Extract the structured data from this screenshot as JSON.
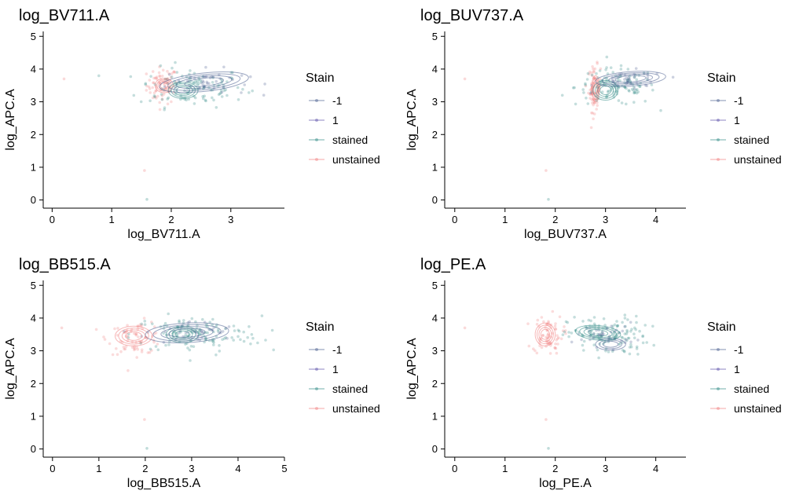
{
  "colors": {
    "neg1": "#4a5f8f",
    "pos1": "#5a4fa8",
    "stained": "#2f8a85",
    "unstained": "#f08080",
    "axis": "#000000"
  },
  "legend": {
    "title": "Stain",
    "entries": [
      "-1",
      "1",
      "stained",
      "unstained"
    ]
  },
  "chart_data": [
    {
      "type": "scatter",
      "title": "log_BV711.A",
      "xlabel": "log_BV711.A",
      "ylabel": "log_APC.A",
      "xlim": [
        -0.15,
        3.9
      ],
      "ylim": [
        -0.25,
        5.15
      ],
      "xticks": [
        "0",
        "1",
        "2",
        "3"
      ],
      "yticks": [
        "0",
        "1",
        "2",
        "3",
        "4",
        "5"
      ],
      "clusters": [
        {
          "series": "unstained",
          "cx": 1.85,
          "cy": 3.5,
          "sx": 0.13,
          "sy": 0.28,
          "n": 70
        },
        {
          "series": "stained",
          "cx": 2.35,
          "cy": 3.45,
          "sx": 0.45,
          "sy": 0.3,
          "n": 120
        },
        {
          "series": "-1",
          "cx": 2.6,
          "cy": 3.6,
          "sx": 0.35,
          "sy": 0.2,
          "n": 40
        }
      ],
      "contours": [
        {
          "series": "unstained",
          "cx": 1.88,
          "cy": 3.5,
          "rx": 0.15,
          "ry": 0.22,
          "rot": 0,
          "levels": 4
        },
        {
          "series": "stained",
          "cx": 2.2,
          "cy": 3.35,
          "rx": 0.25,
          "ry": 0.25,
          "rot": 0,
          "levels": 4
        },
        {
          "series": "-1",
          "cx": 2.55,
          "cy": 3.6,
          "rx": 0.75,
          "ry": 0.28,
          "rot": -6,
          "levels": 4
        }
      ]
    },
    {
      "type": "scatter",
      "title": "log_BUV737.A",
      "xlabel": "log_BUV737.A",
      "ylabel": "log_APC.A",
      "xlim": [
        -0.2,
        4.6
      ],
      "ylim": [
        -0.25,
        5.15
      ],
      "xticks": [
        "0",
        "1",
        "2",
        "3",
        "4"
      ],
      "yticks": [
        "0",
        "1",
        "2",
        "3",
        "4",
        "5"
      ],
      "clusters": [
        {
          "series": "unstained",
          "cx": 2.78,
          "cy": 3.4,
          "sx": 0.06,
          "sy": 0.35,
          "n": 70
        },
        {
          "series": "stained",
          "cx": 3.2,
          "cy": 3.45,
          "sx": 0.4,
          "sy": 0.28,
          "n": 120
        },
        {
          "series": "-1",
          "cx": 3.5,
          "cy": 3.65,
          "sx": 0.35,
          "sy": 0.15,
          "n": 40
        }
      ],
      "contours": [
        {
          "series": "unstained",
          "cx": 2.8,
          "cy": 3.4,
          "rx": 0.08,
          "ry": 0.4,
          "rot": 0,
          "levels": 4
        },
        {
          "series": "stained",
          "cx": 3.0,
          "cy": 3.35,
          "rx": 0.25,
          "ry": 0.3,
          "rot": 0,
          "levels": 4
        },
        {
          "series": "-1",
          "cx": 3.5,
          "cy": 3.7,
          "rx": 0.7,
          "ry": 0.22,
          "rot": -4,
          "levels": 4
        }
      ]
    },
    {
      "type": "scatter",
      "title": "log_BB515.A",
      "xlabel": "log_BB515.A",
      "ylabel": "log_APC.A",
      "xlim": [
        -0.2,
        5.0
      ],
      "ylim": [
        -0.25,
        5.15
      ],
      "xticks": [
        "0",
        "1",
        "2",
        "3",
        "4",
        "5"
      ],
      "yticks": [
        "0",
        "1",
        "2",
        "3",
        "4",
        "5"
      ],
      "clusters": [
        {
          "series": "unstained",
          "cx": 1.8,
          "cy": 3.4,
          "sx": 0.3,
          "sy": 0.25,
          "n": 70
        },
        {
          "series": "stained",
          "cx": 3.1,
          "cy": 3.5,
          "sx": 0.7,
          "sy": 0.28,
          "n": 130
        },
        {
          "series": "-1",
          "cx": 3.0,
          "cy": 3.55,
          "sx": 0.5,
          "sy": 0.18,
          "n": 40
        }
      ],
      "contours": [
        {
          "series": "unstained",
          "cx": 1.75,
          "cy": 3.45,
          "rx": 0.4,
          "ry": 0.3,
          "rot": 0,
          "levels": 4
        },
        {
          "series": "stained",
          "cx": 2.8,
          "cy": 3.5,
          "rx": 0.35,
          "ry": 0.25,
          "rot": 0,
          "levels": 4
        },
        {
          "series": "-1",
          "cx": 2.9,
          "cy": 3.55,
          "rx": 0.9,
          "ry": 0.3,
          "rot": -3,
          "levels": 4
        }
      ]
    },
    {
      "type": "scatter",
      "title": "log_PE.A",
      "xlabel": "log_PE.A",
      "ylabel": "log_APC.A",
      "xlim": [
        -0.2,
        4.6
      ],
      "ylim": [
        -0.25,
        5.15
      ],
      "xticks": [
        "0",
        "1",
        "2",
        "3",
        "4"
      ],
      "yticks": [
        "0",
        "1",
        "2",
        "3",
        "4",
        "5"
      ],
      "clusters": [
        {
          "series": "unstained",
          "cx": 1.85,
          "cy": 3.5,
          "sx": 0.15,
          "sy": 0.3,
          "n": 70
        },
        {
          "series": "stained",
          "cx": 3.05,
          "cy": 3.45,
          "sx": 0.4,
          "sy": 0.3,
          "n": 130
        },
        {
          "series": "-1",
          "cx": 3.0,
          "cy": 3.5,
          "sx": 0.3,
          "sy": 0.18,
          "n": 40
        }
      ],
      "contours": [
        {
          "series": "unstained",
          "cx": 1.8,
          "cy": 3.5,
          "rx": 0.2,
          "ry": 0.35,
          "rot": 0,
          "levels": 4
        },
        {
          "series": "stained",
          "cx": 2.85,
          "cy": 3.55,
          "rx": 0.45,
          "ry": 0.22,
          "rot": 5,
          "levels": 4
        },
        {
          "series": "-1",
          "cx": 3.1,
          "cy": 3.2,
          "rx": 0.3,
          "ry": 0.18,
          "rot": 0,
          "levels": 3
        }
      ]
    }
  ]
}
